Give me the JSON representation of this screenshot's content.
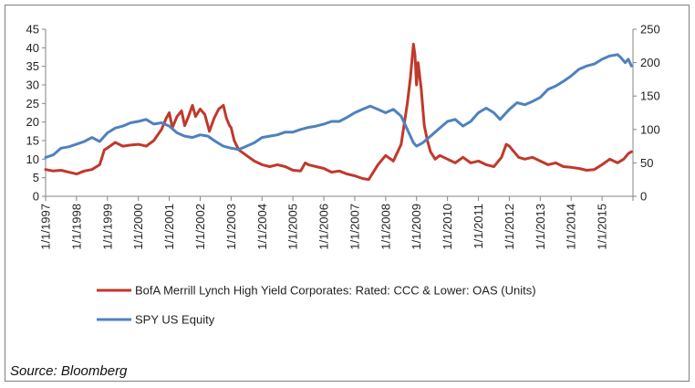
{
  "chart_data": {
    "type": "line",
    "title": "",
    "xlabel": "",
    "ylabel_left": "",
    "ylabel_right": "",
    "left_axis": {
      "ylim": [
        0,
        45
      ],
      "ticks": [
        "0",
        "5",
        "10",
        "15",
        "20",
        "25",
        "30",
        "35",
        "40",
        "45"
      ]
    },
    "right_axis": {
      "ylim": [
        0,
        250
      ],
      "ticks": [
        "0",
        "50",
        "100",
        "150",
        "200",
        "250"
      ]
    },
    "x_range": [
      1997.0,
      2016.0
    ],
    "x_tick_labels": [
      "1/1/1997",
      "1/1/1998",
      "1/1/1999",
      "1/1/2000",
      "1/1/2001",
      "1/1/2002",
      "1/1/2003",
      "1/1/2004",
      "1/1/2005",
      "1/1/2006",
      "1/1/2007",
      "1/1/2008",
      "1/1/2009",
      "1/1/2010",
      "1/1/2011",
      "1/1/2012",
      "1/1/2013",
      "1/1/2014",
      "1/1/2015"
    ],
    "grid": false,
    "legend_position": "bottom",
    "series": [
      {
        "name": "BofA Merrill Lynch High Yield Corporates: Rated: CCC & Lower: OAS (Units)",
        "axis": "left",
        "color": "#c0392b",
        "x": [
          1997.0,
          1997.25,
          1997.5,
          1997.75,
          1998.0,
          1998.25,
          1998.5,
          1998.75,
          1998.9,
          1999.0,
          1999.25,
          1999.5,
          1999.75,
          2000.0,
          2000.25,
          2000.5,
          2000.75,
          2000.9,
          2001.0,
          2001.1,
          2001.25,
          2001.4,
          2001.5,
          2001.6,
          2001.75,
          2001.85,
          2002.0,
          2002.15,
          2002.3,
          2002.45,
          2002.6,
          2002.75,
          2002.85,
          2002.95,
          2003.0,
          2003.1,
          2003.25,
          2003.5,
          2003.75,
          2004.0,
          2004.25,
          2004.5,
          2004.75,
          2005.0,
          2005.25,
          2005.4,
          2005.5,
          2005.75,
          2006.0,
          2006.25,
          2006.5,
          2006.75,
          2007.0,
          2007.25,
          2007.45,
          2007.6,
          2007.75,
          2008.0,
          2008.25,
          2008.5,
          2008.7,
          2008.8,
          2008.9,
          2008.95,
          2009.0,
          2009.05,
          2009.15,
          2009.25,
          2009.35,
          2009.45,
          2009.6,
          2009.75,
          2010.0,
          2010.25,
          2010.5,
          2010.75,
          2011.0,
          2011.25,
          2011.5,
          2011.75,
          2011.9,
          2012.0,
          2012.15,
          2012.3,
          2012.5,
          2012.75,
          2013.0,
          2013.25,
          2013.5,
          2013.75,
          2014.0,
          2014.25,
          2014.5,
          2014.75,
          2015.0,
          2015.25,
          2015.5,
          2015.7,
          2015.85,
          2015.95
        ],
        "y": [
          7.2,
          6.8,
          7.0,
          6.5,
          6.0,
          6.8,
          7.2,
          8.5,
          12.5,
          13.0,
          14.5,
          13.5,
          13.8,
          14.0,
          13.5,
          15.0,
          18.0,
          21.0,
          22.5,
          18.5,
          21.5,
          23.0,
          19.0,
          21.0,
          24.5,
          21.5,
          23.5,
          22.0,
          17.5,
          21.0,
          23.5,
          24.5,
          21.0,
          19.0,
          18.5,
          15.0,
          12.5,
          11.0,
          9.5,
          8.5,
          8.0,
          8.5,
          8.0,
          7.0,
          6.8,
          9.0,
          8.5,
          8.0,
          7.5,
          6.5,
          6.8,
          6.0,
          5.5,
          4.8,
          4.5,
          6.5,
          8.5,
          11.0,
          9.5,
          14.0,
          25.0,
          32.0,
          41.0,
          38.0,
          30.0,
          36.0,
          29.0,
          19.0,
          15.0,
          12.0,
          10.0,
          11.0,
          10.0,
          9.0,
          10.5,
          9.0,
          9.5,
          8.5,
          8.0,
          10.5,
          14.0,
          13.5,
          12.0,
          10.5,
          10.0,
          10.5,
          9.5,
          8.5,
          9.0,
          8.0,
          7.8,
          7.5,
          7.0,
          7.2,
          8.5,
          10.0,
          9.0,
          10.0,
          11.5,
          12.0
        ]
      },
      {
        "name": "SPY US Equity",
        "axis": "right",
        "color": "#4f81bd",
        "x": [
          1997.0,
          1997.25,
          1997.5,
          1997.75,
          1998.0,
          1998.25,
          1998.5,
          1998.75,
          1999.0,
          1999.25,
          1999.5,
          1999.75,
          2000.0,
          2000.25,
          2000.5,
          2000.75,
          2001.0,
          2001.25,
          2001.5,
          2001.75,
          2002.0,
          2002.25,
          2002.5,
          2002.75,
          2003.0,
          2003.25,
          2003.5,
          2003.75,
          2004.0,
          2004.25,
          2004.5,
          2004.75,
          2005.0,
          2005.25,
          2005.5,
          2005.75,
          2006.0,
          2006.25,
          2006.5,
          2006.75,
          2007.0,
          2007.25,
          2007.5,
          2007.75,
          2008.0,
          2008.25,
          2008.5,
          2008.75,
          2008.9,
          2009.0,
          2009.2,
          2009.5,
          2009.75,
          2010.0,
          2010.25,
          2010.5,
          2010.75,
          2011.0,
          2011.25,
          2011.5,
          2011.7,
          2012.0,
          2012.25,
          2012.5,
          2012.75,
          2013.0,
          2013.25,
          2013.5,
          2013.75,
          2014.0,
          2014.25,
          2014.5,
          2014.75,
          2015.0,
          2015.25,
          2015.5,
          2015.6,
          2015.75,
          2015.85,
          2015.95
        ],
        "y": [
          58,
          62,
          72,
          74,
          78,
          82,
          88,
          82,
          95,
          102,
          105,
          110,
          112,
          115,
          108,
          110,
          105,
          95,
          90,
          88,
          92,
          90,
          82,
          75,
          72,
          70,
          75,
          80,
          88,
          90,
          92,
          96,
          96,
          100,
          103,
          105,
          108,
          112,
          112,
          118,
          125,
          130,
          135,
          130,
          125,
          130,
          120,
          95,
          80,
          75,
          80,
          92,
          102,
          112,
          115,
          105,
          112,
          125,
          132,
          125,
          115,
          130,
          140,
          137,
          142,
          148,
          160,
          165,
          172,
          180,
          190,
          195,
          198,
          205,
          210,
          212,
          208,
          200,
          205,
          195
        ]
      }
    ]
  },
  "source_label": "Source: Bloomberg"
}
